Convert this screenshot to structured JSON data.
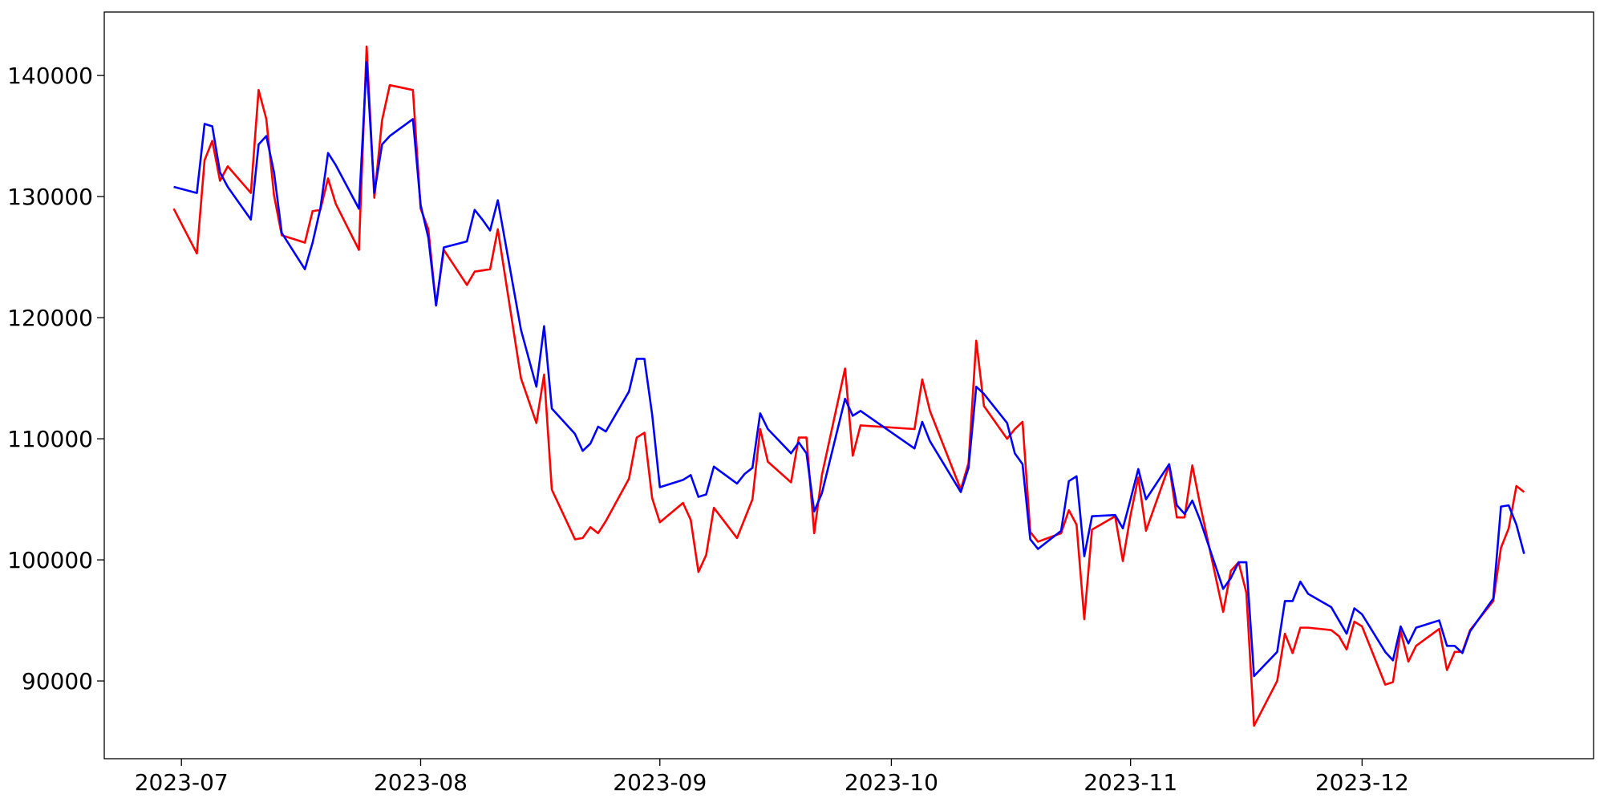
{
  "chart_data": {
    "type": "line",
    "x": [
      "2023-06-30",
      "2023-07-03",
      "2023-07-04",
      "2023-07-05",
      "2023-07-06",
      "2023-07-07",
      "2023-07-10",
      "2023-07-11",
      "2023-07-12",
      "2023-07-13",
      "2023-07-14",
      "2023-07-17",
      "2023-07-18",
      "2023-07-19",
      "2023-07-20",
      "2023-07-21",
      "2023-07-24",
      "2023-07-25",
      "2023-07-26",
      "2023-07-27",
      "2023-07-28",
      "2023-07-31",
      "2023-08-01",
      "2023-08-02",
      "2023-08-03",
      "2023-08-04",
      "2023-08-07",
      "2023-08-08",
      "2023-08-09",
      "2023-08-10",
      "2023-08-11",
      "2023-08-14",
      "2023-08-16",
      "2023-08-17",
      "2023-08-18",
      "2023-08-21",
      "2023-08-22",
      "2023-08-23",
      "2023-08-24",
      "2023-08-25",
      "2023-08-28",
      "2023-08-29",
      "2023-08-30",
      "2023-08-31",
      "2023-09-01",
      "2023-09-04",
      "2023-09-05",
      "2023-09-06",
      "2023-09-07",
      "2023-09-08",
      "2023-09-11",
      "2023-09-12",
      "2023-09-13",
      "2023-09-14",
      "2023-09-15",
      "2023-09-18",
      "2023-09-19",
      "2023-09-20",
      "2023-09-21",
      "2023-09-22",
      "2023-09-25",
      "2023-09-26",
      "2023-09-27",
      "2023-10-04",
      "2023-10-05",
      "2023-10-06",
      "2023-10-10",
      "2023-10-11",
      "2023-10-12",
      "2023-10-13",
      "2023-10-16",
      "2023-10-17",
      "2023-10-18",
      "2023-10-19",
      "2023-10-20",
      "2023-10-23",
      "2023-10-24",
      "2023-10-25",
      "2023-10-26",
      "2023-10-27",
      "2023-10-30",
      "2023-10-31",
      "2023-11-01",
      "2023-11-02",
      "2023-11-03",
      "2023-11-06",
      "2023-11-07",
      "2023-11-08",
      "2023-11-09",
      "2023-11-10",
      "2023-11-13",
      "2023-11-14",
      "2023-11-15",
      "2023-11-16",
      "2023-11-17",
      "2023-11-20",
      "2023-11-21",
      "2023-11-22",
      "2023-11-23",
      "2023-11-24",
      "2023-11-27",
      "2023-11-28",
      "2023-11-29",
      "2023-11-30",
      "2023-12-01",
      "2023-12-04",
      "2023-12-05",
      "2023-12-06",
      "2023-12-07",
      "2023-12-08",
      "2023-12-11",
      "2023-12-12",
      "2023-12-13",
      "2023-12-14",
      "2023-12-15",
      "2023-12-18",
      "2023-12-19",
      "2023-12-20",
      "2023-12-21",
      "2023-12-22"
    ],
    "series": [
      {
        "color": "red",
        "values": [
          129000,
          125300,
          133000,
          134600,
          131300,
          132500,
          130300,
          138800,
          136400,
          130100,
          126800,
          126200,
          128800,
          128900,
          131500,
          129400,
          125600,
          142400,
          129900,
          136300,
          139200,
          138800,
          129000,
          127300,
          121000,
          125600,
          122700,
          123800,
          123900,
          124000,
          127300,
          115000,
          111300,
          115300,
          105800,
          101700,
          101800,
          102700,
          102200,
          103200,
          106700,
          110100,
          110500,
          105100,
          103100,
          104700,
          103300,
          99000,
          100400,
          104300,
          101800,
          103400,
          105000,
          110800,
          108100,
          106400,
          110100,
          110100,
          102200,
          107000,
          115800,
          108600,
          111100,
          110800,
          114900,
          112300,
          105800,
          108000,
          118100,
          112700,
          110000,
          110800,
          111400,
          102300,
          101500,
          102200,
          104100,
          102900,
          95100,
          102500,
          103600,
          99900,
          103700,
          106800,
          102400,
          107800,
          103500,
          103500,
          107800,
          104600,
          95700,
          99100,
          99800,
          97300,
          86300,
          90000,
          93900,
          92300,
          94400,
          94400,
          94200,
          93700,
          92600,
          94900,
          94500,
          89700,
          89900,
          94100,
          91600,
          92900,
          94300,
          90900,
          92400,
          92400,
          94200,
          96600,
          101000,
          102600,
          106100,
          105600
        ]
      },
      {
        "color": "blue",
        "values": [
          130800,
          130300,
          136000,
          135800,
          132000,
          130800,
          128100,
          134300,
          135000,
          132000,
          127000,
          124000,
          126200,
          129000,
          133600,
          132600,
          129000,
          141100,
          130300,
          134300,
          135000,
          136400,
          129300,
          126600,
          121000,
          125800,
          126300,
          128900,
          128100,
          127200,
          129700,
          119000,
          114300,
          119300,
          112500,
          110400,
          109000,
          109600,
          111000,
          110600,
          113900,
          116600,
          116600,
          112000,
          106000,
          106600,
          107000,
          105200,
          105400,
          107700,
          106300,
          107100,
          107600,
          112100,
          110800,
          108800,
          109700,
          108800,
          104000,
          105500,
          113300,
          111900,
          112300,
          109200,
          111400,
          109800,
          105600,
          107600,
          114300,
          113700,
          111300,
          108800,
          107900,
          101700,
          100900,
          102400,
          106500,
          106900,
          100300,
          103600,
          103700,
          102600,
          105000,
          107500,
          105000,
          107900,
          104500,
          103800,
          104900,
          103300,
          97600,
          98500,
          99800,
          99800,
          90400,
          92400,
          96600,
          96600,
          98200,
          97200,
          96100,
          95000,
          93900,
          96000,
          95500,
          92400,
          91700,
          94500,
          93100,
          94400,
          95000,
          92900,
          92900,
          92300,
          94100,
          96800,
          104400,
          104500,
          102900,
          100500
        ]
      }
    ],
    "xlim": [
      "2023-06-21",
      "2023-12-31"
    ],
    "xticks": [
      {
        "value": "2023-07-01",
        "label": "2023-07"
      },
      {
        "value": "2023-08-01",
        "label": "2023-08"
      },
      {
        "value": "2023-09-01",
        "label": "2023-09"
      },
      {
        "value": "2023-10-01",
        "label": "2023-10"
      },
      {
        "value": "2023-11-01",
        "label": "2023-11"
      },
      {
        "value": "2023-12-01",
        "label": "2023-12"
      }
    ],
    "ylim": [
      83580,
      145240
    ],
    "yticks": [
      90000,
      100000,
      110000,
      120000,
      130000,
      140000
    ],
    "grid": false
  }
}
